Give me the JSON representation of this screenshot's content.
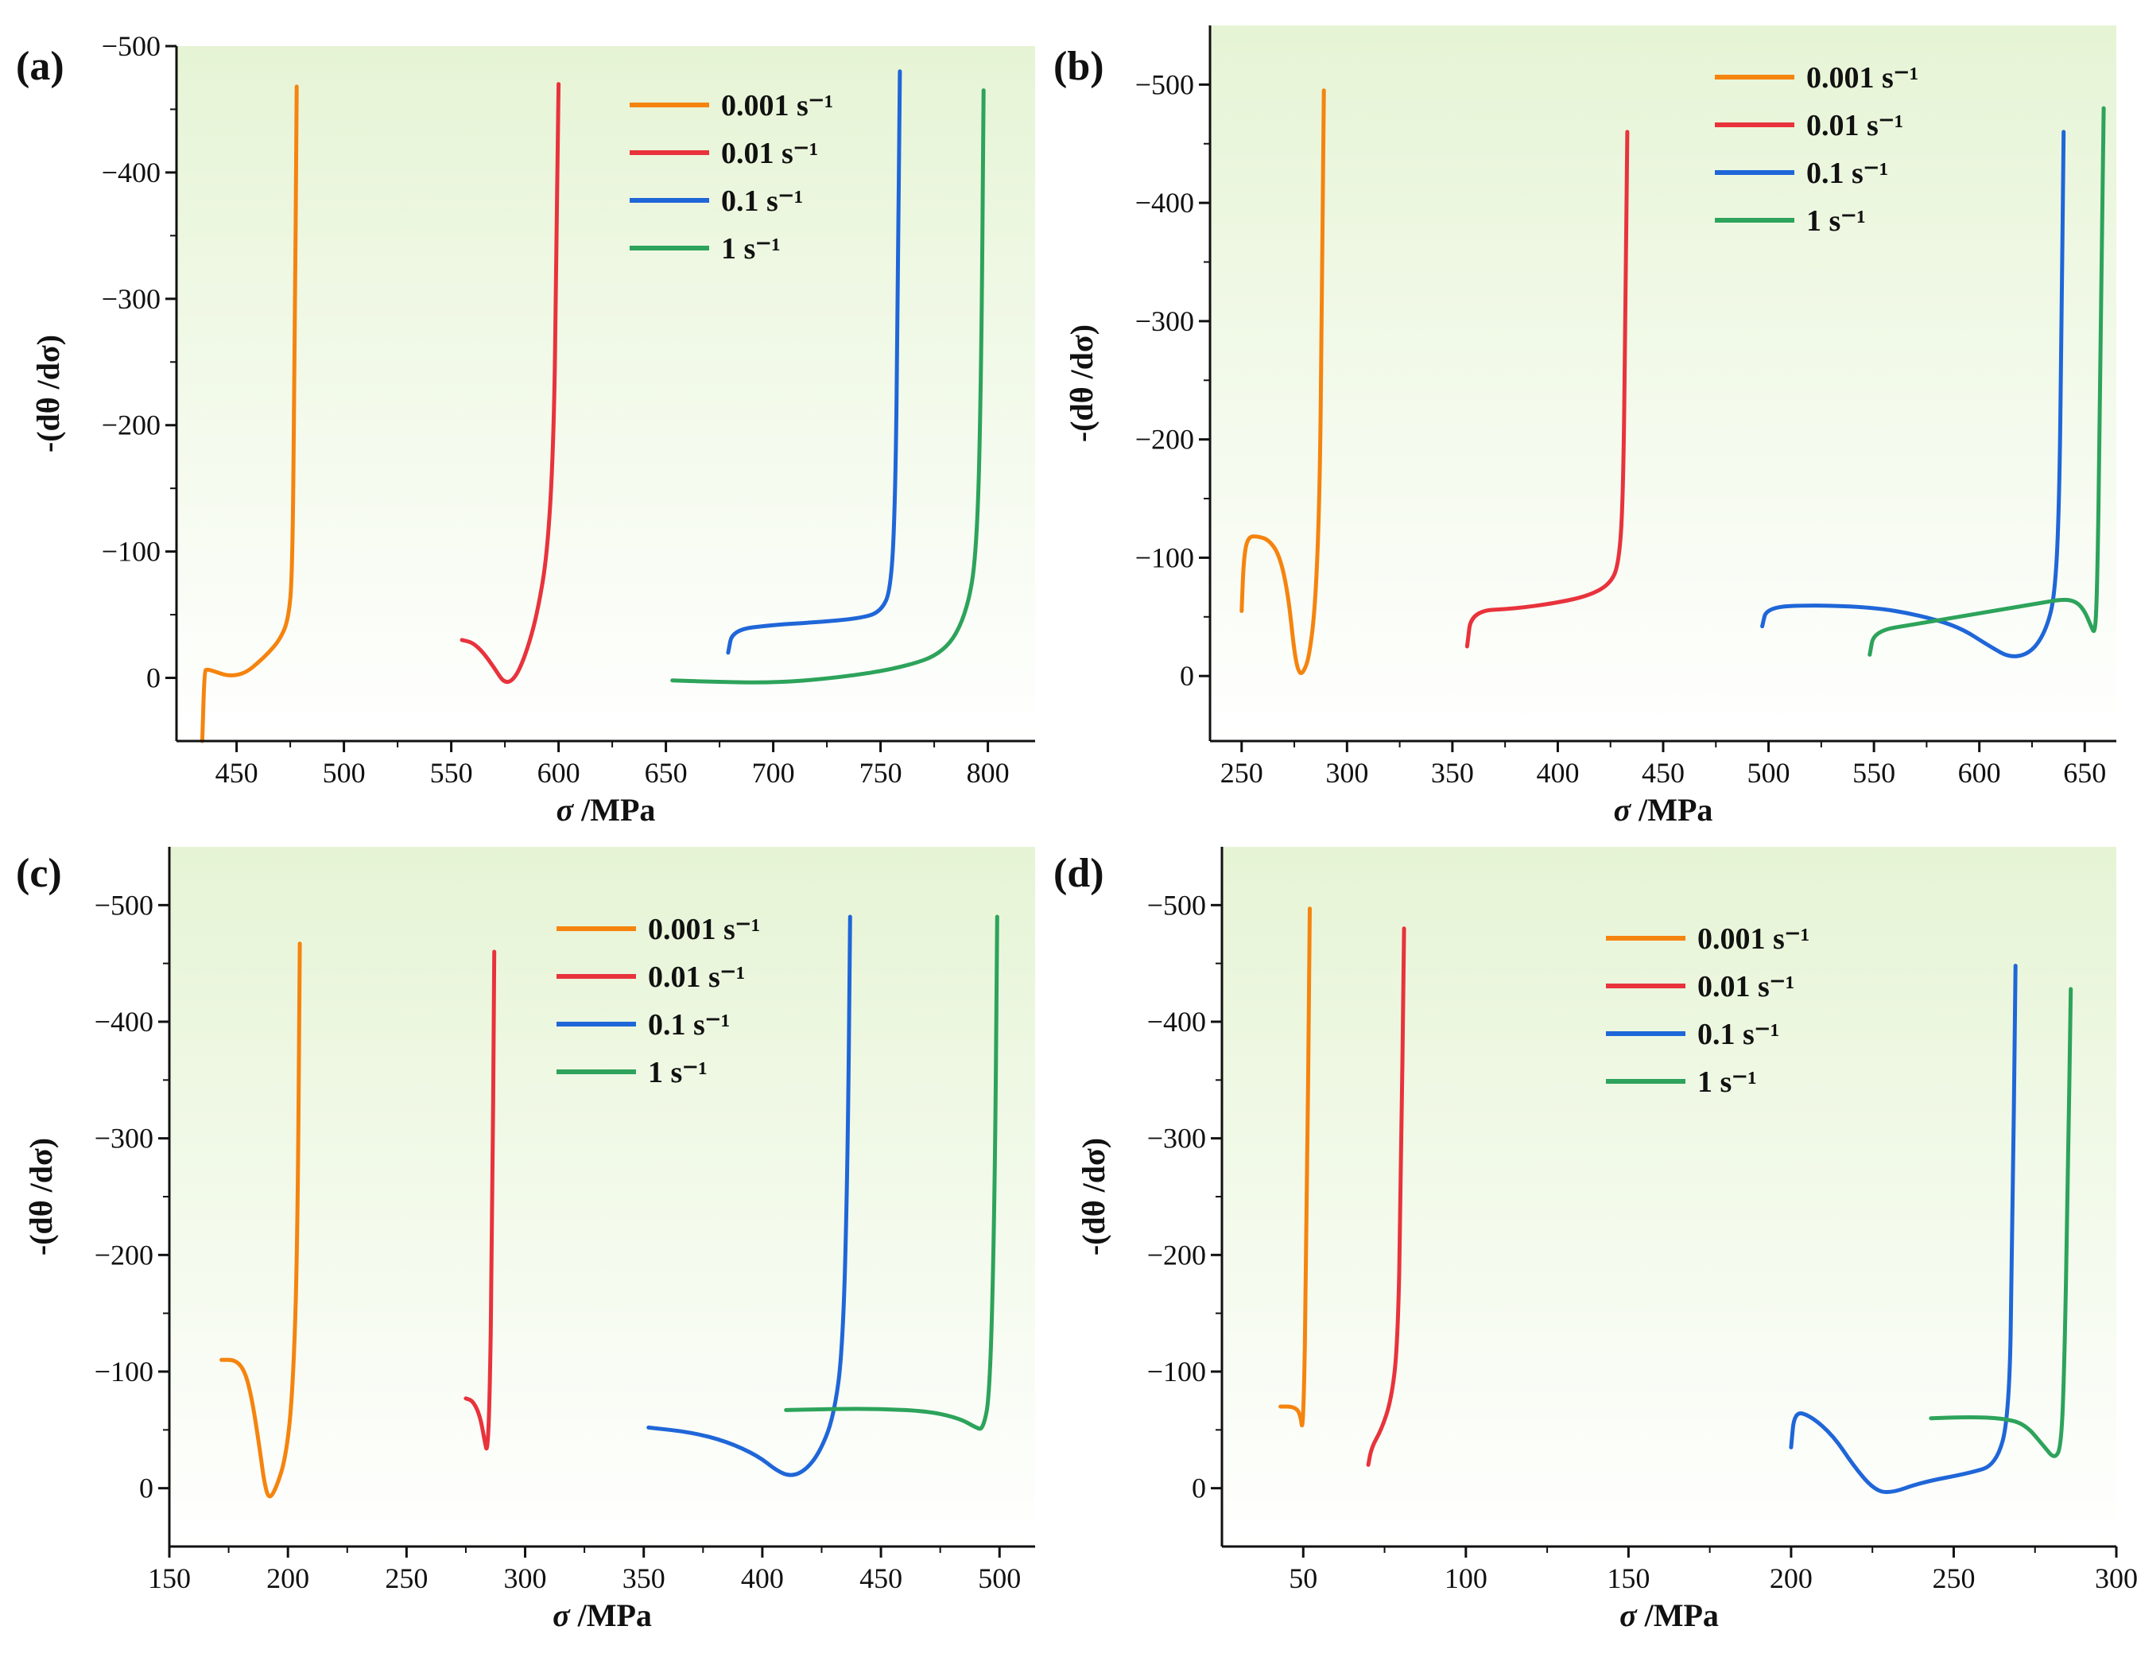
{
  "figure": {
    "colors": {
      "0.001": "#F5840F",
      "0.01": "#E8333C",
      "0.1": "#1F66D8",
      "1": "#2DA35B",
      "bg_top": "#E6F4D5",
      "bg_bottom": "#FFFFFF"
    },
    "legend_labels": [
      "0.001 s⁻¹",
      "0.01 s⁻¹",
      "0.1 s⁻¹",
      "1 s⁻¹"
    ]
  },
  "chart_data": [
    {
      "panel": "(a)",
      "type": "line",
      "xlabel": "σ /MPa",
      "ylabel": "-(dθ /dσ)",
      "xlim": [
        422,
        822
      ],
      "ylim": [
        50,
        -500
      ],
      "xticks": [
        450,
        500,
        550,
        600,
        650,
        700,
        750,
        800
      ],
      "yticks": [
        -500,
        -400,
        -300,
        -200,
        -100,
        0
      ],
      "ytick_labels": [
        "−500",
        "−400",
        "−300",
        "−200",
        "−100",
        "0"
      ],
      "series": [
        {
          "name": "0.001 s⁻¹",
          "x": [
            434,
            435,
            436,
            440,
            445,
            450,
            455,
            460,
            465,
            470,
            474,
            476,
            477,
            478
          ],
          "y": [
            50,
            -5,
            -7,
            -5,
            -2,
            -2,
            -5,
            -12,
            -20,
            -30,
            -45,
            -80,
            -250,
            -468
          ]
        },
        {
          "name": "0.01 s⁻¹",
          "x": [
            555,
            560,
            565,
            570,
            575,
            580,
            585,
            590,
            595,
            598,
            599,
            600
          ],
          "y": [
            -30,
            -28,
            -20,
            -8,
            5,
            0,
            -20,
            -50,
            -100,
            -200,
            -350,
            -470
          ]
        },
        {
          "name": "0.1 s⁻¹",
          "x": [
            679,
            681,
            700,
            720,
            740,
            750,
            755,
            757,
            758,
            759
          ],
          "y": [
            -20,
            -38,
            -42,
            -44,
            -47,
            -52,
            -70,
            -150,
            -300,
            -480
          ]
        },
        {
          "name": "1 s⁻¹",
          "x": [
            653,
            670,
            700,
            730,
            760,
            780,
            790,
            795,
            797,
            798
          ],
          "y": [
            2,
            3,
            4,
            0,
            -8,
            -20,
            -50,
            -100,
            -250,
            -465
          ]
        }
      ]
    },
    {
      "panel": "(b)",
      "type": "line",
      "xlabel": "σ /MPa",
      "ylabel": "-(dθ /dσ)",
      "xlim": [
        235,
        665
      ],
      "ylim": [
        55,
        -550
      ],
      "xticks": [
        250,
        300,
        350,
        400,
        450,
        500,
        550,
        600,
        650
      ],
      "yticks": [
        -500,
        -400,
        -300,
        -200,
        -100,
        0
      ],
      "ytick_labels": [
        "−500",
        "−400",
        "−300",
        "−200",
        "−100",
        "0"
      ],
      "series": [
        {
          "name": "0.001 s⁻¹",
          "x": [
            250,
            251,
            253,
            258,
            263,
            268,
            272,
            275,
            277,
            279,
            282,
            285,
            287,
            288,
            289
          ],
          "y": [
            -55,
            -100,
            -118,
            -118,
            -115,
            -102,
            -70,
            -20,
            -3,
            -2,
            -15,
            -60,
            -150,
            -300,
            -495
          ]
        },
        {
          "name": "0.01 s⁻¹",
          "x": [
            357,
            359,
            380,
            400,
            415,
            425,
            429,
            431,
            432,
            433
          ],
          "y": [
            -25,
            -55,
            -57,
            -62,
            -68,
            -78,
            -95,
            -150,
            -300,
            -460
          ]
        },
        {
          "name": "0.1 s⁻¹",
          "x": [
            497,
            499,
            520,
            550,
            570,
            590,
            605,
            615,
            625,
            632,
            636,
            638,
            639,
            640
          ],
          "y": [
            -42,
            -58,
            -60,
            -58,
            -52,
            -42,
            -25,
            -15,
            -20,
            -40,
            -70,
            -150,
            -300,
            -460
          ]
        },
        {
          "name": "1 s⁻¹",
          "x": [
            548,
            550,
            570,
            590,
            610,
            630,
            640,
            646,
            650,
            653,
            655,
            656,
            657,
            658,
            659
          ],
          "y": [
            -18,
            -38,
            -44,
            -50,
            -56,
            -62,
            -65,
            -63,
            -55,
            -42,
            -35,
            -80,
            -200,
            -350,
            -480
          ]
        }
      ]
    },
    {
      "panel": "(c)",
      "type": "line",
      "xlabel": "σ /MPa",
      "ylabel": "-(dθ /dσ)",
      "xlim": [
        150,
        515
      ],
      "ylim": [
        50,
        -550
      ],
      "xticks": [
        150,
        200,
        250,
        300,
        350,
        400,
        450,
        500
      ],
      "yticks": [
        -500,
        -400,
        -300,
        -200,
        -100,
        0
      ],
      "ytick_labels": [
        "−500",
        "−400",
        "−300",
        "−200",
        "−100",
        "0"
      ],
      "series": [
        {
          "name": "0.001 s⁻¹",
          "x": [
            172,
            178,
            182,
            185,
            188,
            190,
            192,
            195,
            199,
            202,
            204,
            205
          ],
          "y": [
            -110,
            -110,
            -100,
            -75,
            -35,
            -5,
            10,
            0,
            -25,
            -80,
            -200,
            -467
          ]
        },
        {
          "name": "0.01 s⁻¹",
          "x": [
            275,
            278,
            281,
            283,
            284,
            285,
            286,
            287
          ],
          "y": [
            -77,
            -75,
            -62,
            -40,
            -30,
            -70,
            -200,
            -460
          ]
        },
        {
          "name": "0.1 s⁻¹",
          "x": [
            352,
            370,
            385,
            398,
            406,
            412,
            418,
            424,
            430,
            434,
            436,
            437
          ],
          "y": [
            -52,
            -48,
            -40,
            -28,
            -15,
            -10,
            -15,
            -30,
            -60,
            -120,
            -280,
            -490
          ]
        },
        {
          "name": "1 s⁻¹",
          "x": [
            410,
            430,
            450,
            470,
            483,
            490,
            493,
            496,
            498,
            499
          ],
          "y": [
            -67,
            -68,
            -68,
            -66,
            -60,
            -52,
            -50,
            -80,
            -250,
            -490
          ]
        }
      ]
    },
    {
      "panel": "(d)",
      "type": "line",
      "xlabel": "σ /MPa",
      "ylabel": "-(dθ /dσ)",
      "xlim": [
        25,
        300
      ],
      "ylim": [
        50,
        -550
      ],
      "xticks": [
        50,
        100,
        150,
        200,
        250,
        300
      ],
      "yticks": [
        -500,
        -400,
        -300,
        -200,
        -100,
        0
      ],
      "ytick_labels": [
        "−500",
        "−400",
        "−300",
        "−200",
        "−100",
        "0"
      ],
      "series": [
        {
          "name": "0.001 s⁻¹",
          "x": [
            43,
            47,
            49,
            50,
            51,
            52
          ],
          "y": [
            -70,
            -70,
            -65,
            -45,
            -200,
            -497
          ]
        },
        {
          "name": "0.01 s⁻¹",
          "x": [
            70,
            71,
            74,
            77,
            79,
            80,
            81
          ],
          "y": [
            -20,
            -35,
            -50,
            -75,
            -120,
            -250,
            -480
          ]
        },
        {
          "name": "0.1 s⁻¹",
          "x": [
            200,
            201,
            206,
            213,
            219,
            225,
            230,
            240,
            255,
            263,
            267,
            268,
            269
          ],
          "y": [
            -35,
            -66,
            -62,
            -45,
            -20,
            0,
            5,
            -5,
            -13,
            -20,
            -60,
            -200,
            -448
          ]
        },
        {
          "name": "1 s⁻¹",
          "x": [
            243,
            255,
            265,
            272,
            278,
            281,
            283,
            284,
            285,
            286
          ],
          "y": [
            -60,
            -61,
            -60,
            -55,
            -35,
            -25,
            -35,
            -100,
            -250,
            -428
          ]
        }
      ]
    }
  ]
}
